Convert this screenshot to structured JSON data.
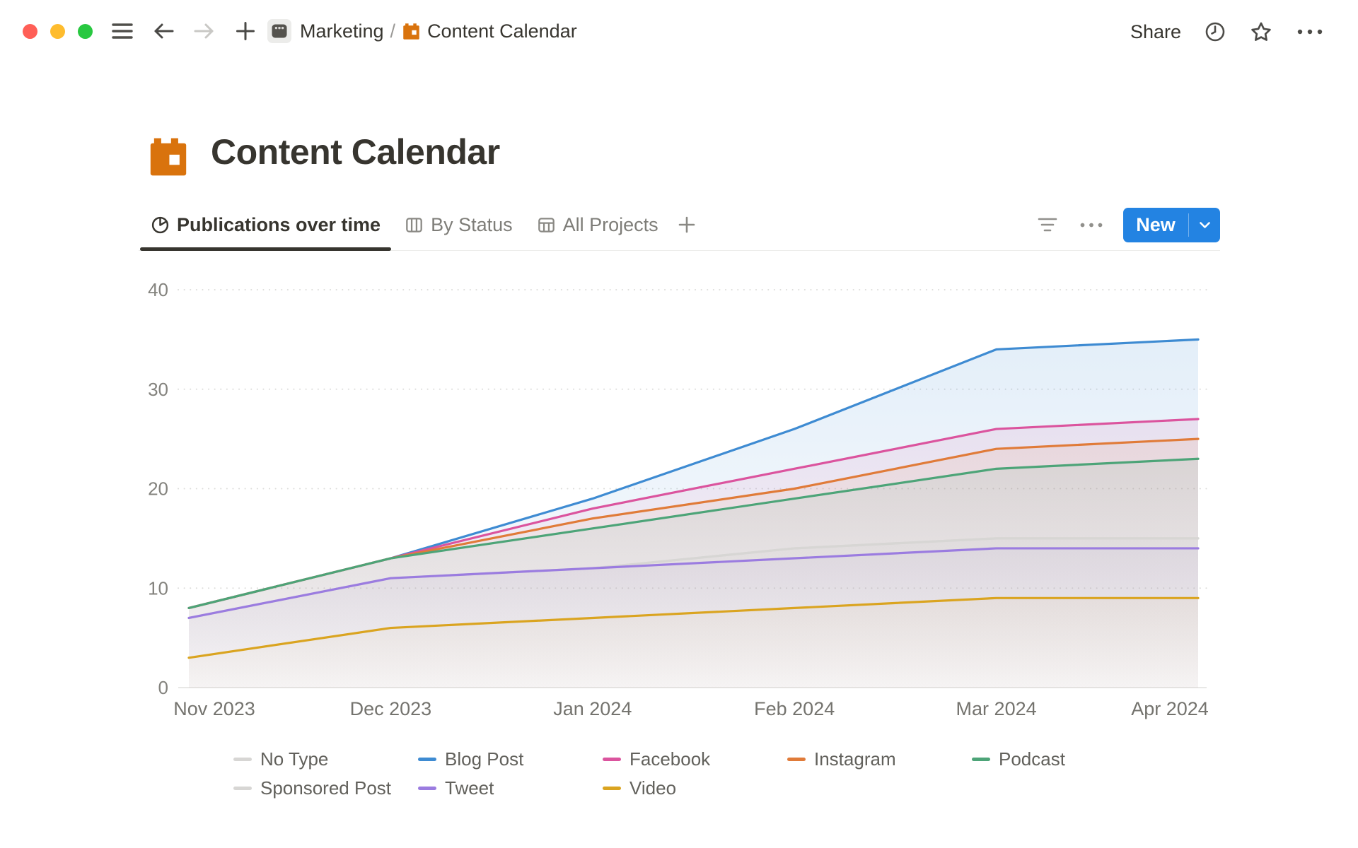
{
  "window": {
    "breadcrumb": {
      "workspace": "Marketing",
      "separator": "/",
      "page": "Content Calendar"
    },
    "actions": {
      "share": "Share"
    }
  },
  "page": {
    "title": "Content Calendar"
  },
  "view_tabs": [
    {
      "label": "Publications over time",
      "icon": "pie-chart-icon",
      "active": true
    },
    {
      "label": "By Status",
      "icon": "board-columns-icon",
      "active": false
    },
    {
      "label": "All Projects",
      "icon": "table-icon",
      "active": false
    }
  ],
  "toolbar": {
    "new_label": "New",
    "accent_color": "#2383E2"
  },
  "chart_data": {
    "type": "area",
    "title": "Publications over time",
    "x": [
      "Nov 2023",
      "Dec 2023",
      "Jan 2024",
      "Feb 2024",
      "Mar 2024",
      "Apr 2024"
    ],
    "xlabel": "",
    "ylabel": "",
    "ylim": [
      0,
      40
    ],
    "yticks": [
      0,
      10,
      20,
      30,
      40
    ],
    "grid": "horizontal-dotted",
    "legend_position": "bottom",
    "series": [
      {
        "name": "No Type",
        "color": "#D7D6D4",
        "values": [
          7,
          11,
          12,
          14,
          15,
          15
        ]
      },
      {
        "name": "Blog Post",
        "color": "#3E8BD2",
        "values": [
          8,
          13,
          19,
          26,
          34,
          35
        ]
      },
      {
        "name": "Facebook",
        "color": "#DB549E",
        "values": [
          8,
          13,
          18,
          22,
          26,
          27
        ]
      },
      {
        "name": "Instagram",
        "color": "#E07B39",
        "values": [
          8,
          13,
          17,
          20,
          24,
          25
        ]
      },
      {
        "name": "Podcast",
        "color": "#4DA478",
        "values": [
          8,
          13,
          16,
          19,
          22,
          23
        ]
      },
      {
        "name": "Sponsored Post",
        "color": "#D7D6D4",
        "values": [
          7,
          11,
          12,
          14,
          15,
          15
        ]
      },
      {
        "name": "Tweet",
        "color": "#9B7CE0",
        "values": [
          7,
          11,
          12,
          13,
          14,
          14
        ]
      },
      {
        "name": "Video",
        "color": "#DAA420",
        "values": [
          3,
          6,
          7,
          8,
          9,
          9
        ]
      }
    ]
  }
}
